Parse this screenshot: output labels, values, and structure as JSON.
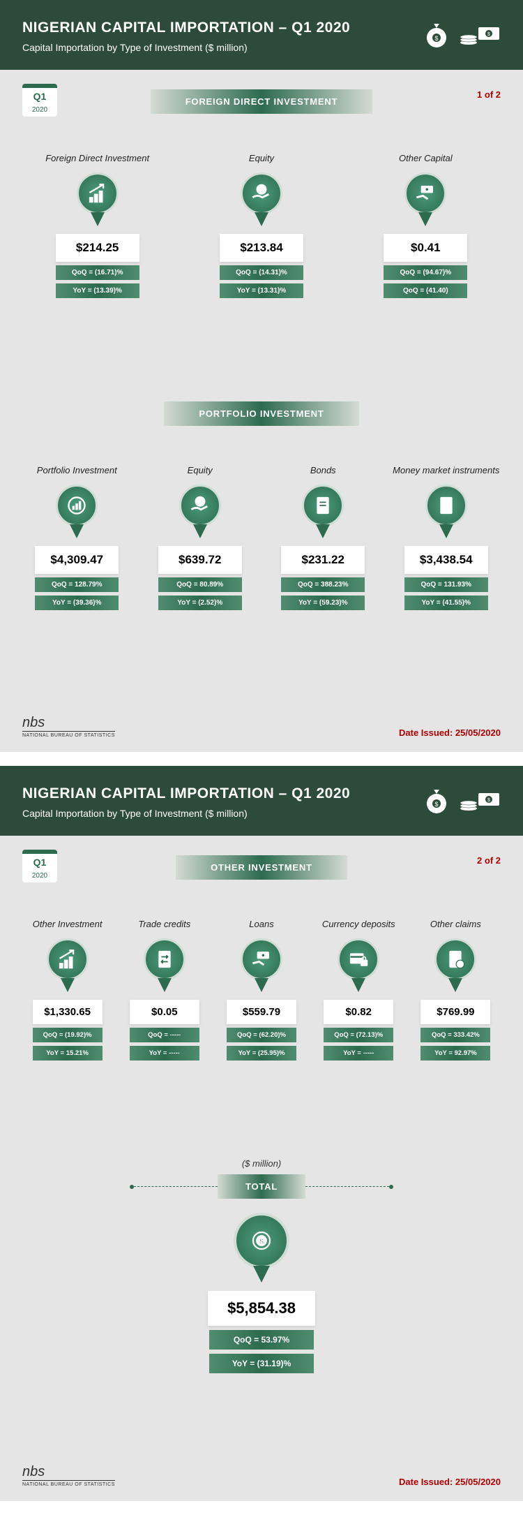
{
  "colors": {
    "header_bg": "#2d4b3a",
    "page_bg": "#e5e5e5",
    "accent_green": "#2d6b4f",
    "red_text": "#b00000",
    "card_bg": "#ffffff"
  },
  "header": {
    "title": "NIGERIAN CAPITAL IMPORTATION – Q1 2020",
    "subtitle": "Capital Importation by Type of Investment ($ million)"
  },
  "quarter": {
    "label": "Q1",
    "year": "2020"
  },
  "page1": {
    "counter": "1 of 2",
    "section_fdi": {
      "title": "FOREIGN DIRECT INVESTMENT",
      "cards": [
        {
          "label": "Foreign Direct Investment",
          "value": "$214.25",
          "qoq": "QoQ = (16.71)%",
          "yoy": "YoY = (13.39)%",
          "icon": "chart-up"
        },
        {
          "label": "Equity",
          "value": "$213.84",
          "qoq": "QoQ = (14.31)%",
          "yoy": "YoY = (13.31)%",
          "icon": "hand-coin"
        },
        {
          "label": "Other Capital",
          "value": "$0.41",
          "qoq": "QoQ = (94.67)%",
          "yoy": "QoQ = (41.40)",
          "icon": "hand-cash"
        }
      ]
    },
    "section_portfolio": {
      "title": "PORTFOLIO INVESTMENT",
      "cards": [
        {
          "label": "Portfolio Investment",
          "value": "$4,309.47",
          "qoq": "QoQ = 128.79%",
          "yoy": "YoY = (39.36)%",
          "icon": "badge-chart"
        },
        {
          "label": "Equity",
          "value": "$639.72",
          "qoq": "QoQ = 80.89%",
          "yoy": "YoY = (2.52)%",
          "icon": "hand-coin"
        },
        {
          "label": "Bonds",
          "value": "$231.22",
          "qoq": "QoQ = 388.23%",
          "yoy": "YoY = (59.23)%",
          "icon": "document"
        },
        {
          "label": "Money market instruments",
          "value": "$3,438.54",
          "qoq": "QoQ = 131.93%",
          "yoy": "YoY = (41.55)%",
          "icon": "doc-money"
        }
      ]
    }
  },
  "page2": {
    "counter": "2 of 2",
    "section_other": {
      "title": "OTHER INVESTMENT",
      "cards": [
        {
          "label": "Other Investment",
          "value": "$1,330.65",
          "qoq": "QoQ = (19.92)%",
          "yoy": "YoY = 15.21%",
          "icon": "chart-up"
        },
        {
          "label": "Trade credits",
          "value": "$0.05",
          "qoq": "QoQ = -----",
          "yoy": "YoY = -----",
          "icon": "doc-arrows"
        },
        {
          "label": "Loans",
          "value": "$559.79",
          "qoq": "QoQ = (62.20)%",
          "yoy": "YoY = (25.95)%",
          "icon": "hand-cash"
        },
        {
          "label": "Currency deposits",
          "value": "$0.82",
          "qoq": "QoQ = (72.13)%",
          "yoy": "YoY = -----",
          "icon": "card-lock"
        },
        {
          "label": "Other claims",
          "value": "$769.99",
          "qoq": "QoQ = 333.42%",
          "yoy": "YoY = 92.97%",
          "icon": "doc-alert"
        }
      ]
    },
    "total": {
      "unit": "($ million)",
      "title": "TOTAL",
      "value": "$5,854.38",
      "qoq": "QoQ = 53.97%",
      "yoy": "YoY = (31.19)%",
      "icon": "dollar-circle"
    }
  },
  "footer": {
    "org": "nbs",
    "org_full": "NATIONAL BUREAU OF STATISTICS",
    "date_label": "Date Issued: 25/05/2020"
  }
}
